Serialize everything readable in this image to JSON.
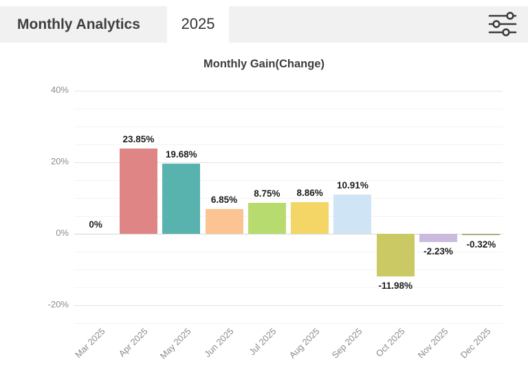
{
  "header": {
    "title": "Monthly Analytics",
    "tab_label": "2025"
  },
  "icons": {
    "filter": "sliders-icon"
  },
  "chart_data": {
    "type": "bar",
    "title": "Monthly Gain(Change)",
    "categories": [
      "Mar 2025",
      "Apr 2025",
      "May 2025",
      "Jun 2025",
      "Jul 2025",
      "Aug 2025",
      "Sep 2025",
      "Oct 2025",
      "Nov 2025",
      "Dec 2025"
    ],
    "values": [
      0,
      23.85,
      19.68,
      6.85,
      8.75,
      8.86,
      10.91,
      -11.98,
      -2.23,
      -0.32
    ],
    "value_labels": [
      "0%",
      "23.85%",
      "19.68%",
      "6.85%",
      "8.75%",
      "8.86%",
      "10.91%",
      "-11.98%",
      "-2.23%",
      "-0.32%"
    ],
    "bar_colors": [
      null,
      "#e08586",
      "#58b2ae",
      "#fcc492",
      "#b8db6f",
      "#f4d666",
      "#cfe5f6",
      "#cbc963",
      "#c9bade",
      "#a7b17b"
    ],
    "xlabel": "",
    "ylabel": "",
    "y_axis": {
      "min": -25,
      "max": 45,
      "minor_step": 5,
      "ticks": [
        {
          "value": 40,
          "label": "40%"
        },
        {
          "value": 20,
          "label": "20%"
        },
        {
          "value": 0,
          "label": "0%"
        },
        {
          "value": -20,
          "label": "-20%"
        }
      ]
    },
    "grid": true,
    "legend": false
  },
  "colors": {
    "header_band": "#f1f1f1",
    "icon_stroke": "#3a3a3a",
    "grid_minor": "#f3f3f3",
    "grid_major": "#e4e4e4",
    "grid_zero": "#d6d6d6",
    "axis_label": "#8b8b8b",
    "data_label": "#1c1c1c",
    "title_text": "#3d3d3d"
  }
}
